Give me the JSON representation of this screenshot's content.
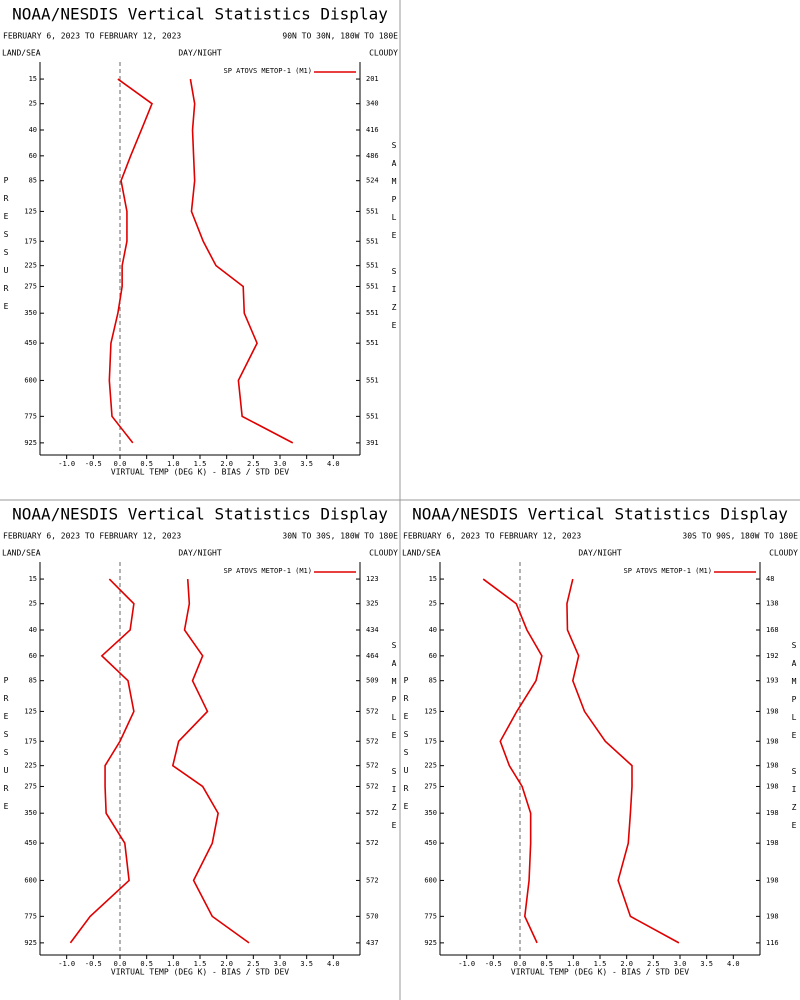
{
  "chart_data": [
    {
      "type": "line",
      "title": "NOAA/NESDIS Vertical Statistics Display",
      "date_range": "FEBRUARY 6, 2023 TO FEBRUARY 12, 2023",
      "region": "90N TO 30N, 180W TO 180E",
      "left_header": "LAND/SEA",
      "center_header": "DAY/NIGHT",
      "right_header": "CLOUDY",
      "y_label": "PRESSURE",
      "y2_label": "SAMPLE SIZE",
      "x_label": "VIRTUAL TEMP (DEG K) - BIAS / STD DEV",
      "legend": "SP ATOVS METOP-1 (M1)",
      "color": "#e00000",
      "levels": [
        15,
        25,
        40,
        60,
        85,
        125,
        175,
        225,
        275,
        350,
        450,
        600,
        775,
        925
      ],
      "bias": [
        -0.04,
        0.6,
        0.4,
        0.2,
        0.02,
        0.13,
        0.13,
        0.04,
        0.04,
        -0.04,
        -0.17,
        -0.2,
        -0.15,
        0.24
      ],
      "std_dev": [
        1.32,
        1.4,
        1.36,
        1.38,
        1.4,
        1.34,
        1.56,
        1.8,
        2.31,
        2.33,
        2.57,
        2.22,
        2.29,
        3.24
      ],
      "sample_size": [
        201,
        340,
        416,
        486,
        524,
        551,
        551,
        551,
        551,
        551,
        551,
        551,
        551,
        391
      ],
      "xlim": [
        -1.5,
        4.5
      ],
      "xticks": [
        {
          "value": -1,
          "label": "-1.0"
        },
        {
          "value": -0.5,
          "label": "-0.5"
        },
        {
          "value": 0,
          "label": "0.0"
        },
        {
          "value": 0.5,
          "label": "0.5"
        },
        {
          "value": 1,
          "label": "1.0"
        },
        {
          "value": 1.5,
          "label": "1.5"
        },
        {
          "value": 2,
          "label": "2.0"
        },
        {
          "value": 2.5,
          "label": "2.5"
        },
        {
          "value": 3,
          "label": "3.0"
        },
        {
          "value": 3.5,
          "label": "3.5"
        },
        {
          "value": 4,
          "label": "4.0"
        }
      ],
      "ylim": [
        10,
        1000
      ]
    },
    {
      "type": "line",
      "title": "NOAA/NESDIS Vertical Statistics Display",
      "date_range": "FEBRUARY 6, 2023 TO FEBRUARY 12, 2023",
      "region": "30N TO 30S, 180W TO 180E",
      "left_header": "LAND/SEA",
      "center_header": "DAY/NIGHT",
      "right_header": "CLOUDY",
      "y_label": "PRESSURE",
      "y2_label": "SAMPLE SIZE",
      "x_label": "VIRTUAL TEMP (DEG K) - BIAS / STD DEV",
      "legend": "SP ATOVS METOP-1 (M1)",
      "color": "#e00000",
      "levels": [
        15,
        25,
        40,
        60,
        85,
        125,
        175,
        225,
        275,
        350,
        450,
        600,
        775,
        925
      ],
      "bias": [
        -0.2,
        0.26,
        0.19,
        -0.34,
        0.15,
        0.26,
        0,
        -0.28,
        -0.28,
        -0.26,
        0.09,
        0.17,
        -0.56,
        -0.93
      ],
      "std_dev": [
        1.27,
        1.3,
        1.21,
        1.55,
        1.36,
        1.64,
        1.1,
        0.99,
        1.55,
        1.84,
        1.73,
        1.38,
        1.73,
        2.42
      ],
      "sample_size": [
        123,
        325,
        434,
        464,
        509,
        572,
        572,
        572,
        572,
        572,
        572,
        572,
        570,
        437
      ],
      "xlim": [
        -1.5,
        4.5
      ],
      "xticks": [
        {
          "value": -1,
          "label": "-1.0"
        },
        {
          "value": -0.5,
          "label": "-0.5"
        },
        {
          "value": 0,
          "label": "0.0"
        },
        {
          "value": 0.5,
          "label": "0.5"
        },
        {
          "value": 1,
          "label": "1.0"
        },
        {
          "value": 1.5,
          "label": "1.5"
        },
        {
          "value": 2,
          "label": "2.0"
        },
        {
          "value": 2.5,
          "label": "2.5"
        },
        {
          "value": 3,
          "label": "3.0"
        },
        {
          "value": 3.5,
          "label": "3.5"
        },
        {
          "value": 4,
          "label": "4.0"
        }
      ],
      "ylim": [
        10,
        1000
      ]
    },
    {
      "type": "line",
      "title": "NOAA/NESDIS Vertical Statistics Display",
      "date_range": "FEBRUARY 6, 2023 TO FEBRUARY 12, 2023",
      "region": "30S TO 90S, 180W TO 180E",
      "left_header": "LAND/SEA",
      "center_header": "DAY/NIGHT",
      "right_header": "CLOUDY",
      "y_label": "PRESSURE",
      "y2_label": "SAMPLE SIZE",
      "x_label": "VIRTUAL TEMP (DEG K) - BIAS / STD DEV",
      "legend": "SP ATOVS METOP-1 (M1)",
      "color": "#e00000",
      "levels": [
        15,
        25,
        40,
        60,
        85,
        125,
        175,
        225,
        275,
        350,
        450,
        600,
        775,
        925
      ],
      "bias": [
        -0.69,
        -0.07,
        0.13,
        0.41,
        0.3,
        -0.06,
        -0.37,
        -0.2,
        0.04,
        0.2,
        0.2,
        0.17,
        0.09,
        0.32
      ],
      "std_dev": [
        0.99,
        0.88,
        0.89,
        1.1,
        0.99,
        1.21,
        1.6,
        2.1,
        2.1,
        2.07,
        2.03,
        1.84,
        2.07,
        2.98
      ],
      "sample_size": [
        48,
        138,
        168,
        192,
        193,
        198,
        198,
        198,
        198,
        198,
        198,
        198,
        198,
        116
      ],
      "xlim": [
        -1.5,
        4.5
      ],
      "xticks": [
        {
          "value": -1,
          "label": "-1.0"
        },
        {
          "value": -0.5,
          "label": "-0.5"
        },
        {
          "value": 0,
          "label": "0.0"
        },
        {
          "value": 0.5,
          "label": "0.5"
        },
        {
          "value": 1,
          "label": "1.0"
        },
        {
          "value": 1.5,
          "label": "1.5"
        },
        {
          "value": 2,
          "label": "2.0"
        },
        {
          "value": 2.5,
          "label": "2.5"
        },
        {
          "value": 3,
          "label": "3.0"
        },
        {
          "value": 3.5,
          "label": "3.5"
        },
        {
          "value": 4,
          "label": "4.0"
        }
      ],
      "ylim": [
        10,
        1000
      ]
    }
  ]
}
